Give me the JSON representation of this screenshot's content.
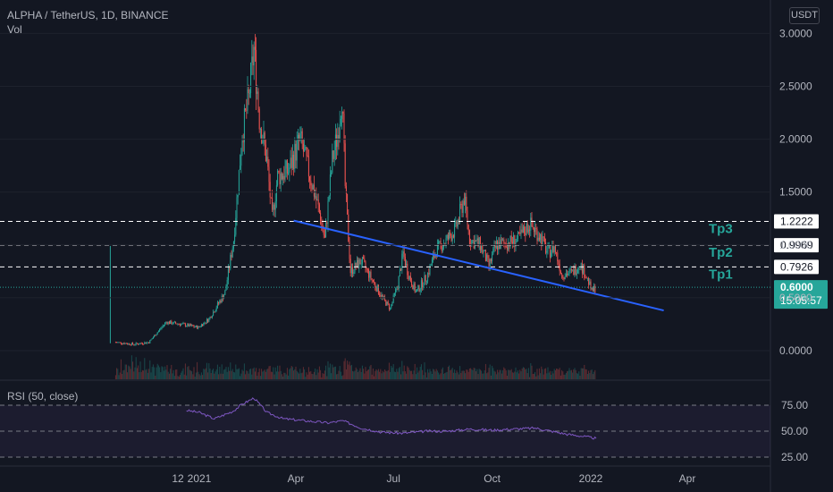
{
  "header": {
    "symbol_line": "ALPHA / TetherUS, 1D, BINANCE",
    "volume_label": "Vol",
    "currency_button": "USDT"
  },
  "rsi": {
    "label": "RSI (50, close)",
    "levels": [
      75,
      50,
      25
    ]
  },
  "colors": {
    "background": "#131722",
    "up": "#26a69a",
    "down": "#ef5350",
    "trendline": "#2962ff",
    "target_label": "#26a69a",
    "rsi_line": "#7e57c2"
  },
  "chart_data": [
    {
      "type": "candlestick",
      "title": "ALPHA / TetherUS, 1D, BINANCE",
      "ylim": [
        -0.25,
        3.1
      ],
      "y_ticks": [
        "3.0000",
        "2.5000",
        "2.0000",
        "1.5000",
        "1.0000",
        "0.5000",
        "0.0000"
      ],
      "x_tick_labels": [
        "12",
        "2021",
        "Apr",
        "Jul",
        "Oct",
        "2022",
        "Apr"
      ],
      "price_path": [
        [
          "2020-10-10",
          0.99
        ],
        [
          "2020-10-15",
          0.08
        ],
        [
          "2020-11-01",
          0.06
        ],
        [
          "2020-11-15",
          0.08
        ],
        [
          "2020-12-01",
          0.27
        ],
        [
          "2020-12-15",
          0.25
        ],
        [
          "2020-12-31",
          0.22
        ],
        [
          "2021-01-10",
          0.3
        ],
        [
          "2021-01-25",
          0.55
        ],
        [
          "2021-02-02",
          1.05
        ],
        [
          "2021-02-10",
          2.05
        ],
        [
          "2021-02-16",
          2.38
        ],
        [
          "2021-02-21",
          2.85
        ],
        [
          "2021-02-26",
          2.2
        ],
        [
          "2021-03-05",
          1.8
        ],
        [
          "2021-03-10",
          1.25
        ],
        [
          "2021-03-15",
          1.65
        ],
        [
          "2021-03-25",
          1.7
        ],
        [
          "2021-04-05",
          2.0
        ],
        [
          "2021-04-15",
          1.62
        ],
        [
          "2021-04-22",
          1.35
        ],
        [
          "2021-04-28",
          1.05
        ],
        [
          "2021-05-05",
          1.8
        ],
        [
          "2021-05-10",
          2.05
        ],
        [
          "2021-05-14",
          2.42
        ],
        [
          "2021-05-17",
          1.55
        ],
        [
          "2021-05-22",
          0.75
        ],
        [
          "2021-06-01",
          0.85
        ],
        [
          "2021-06-15",
          0.6
        ],
        [
          "2021-06-22",
          0.48
        ],
        [
          "2021-06-28",
          0.4
        ],
        [
          "2021-07-05",
          0.62
        ],
        [
          "2021-07-10",
          0.92
        ],
        [
          "2021-07-15",
          0.72
        ],
        [
          "2021-07-22",
          0.55
        ],
        [
          "2021-08-01",
          0.7
        ],
        [
          "2021-08-10",
          0.95
        ],
        [
          "2021-08-20",
          1.05
        ],
        [
          "2021-08-28",
          1.15
        ],
        [
          "2021-09-05",
          1.45
        ],
        [
          "2021-09-10",
          1.05
        ],
        [
          "2021-09-20",
          1.0
        ],
        [
          "2021-09-28",
          0.8
        ],
        [
          "2021-10-05",
          1.0
        ],
        [
          "2021-10-15",
          1.02
        ],
        [
          "2021-10-25",
          1.05
        ],
        [
          "2021-11-05",
          1.2
        ],
        [
          "2021-11-15",
          1.08
        ],
        [
          "2021-11-22",
          0.92
        ],
        [
          "2021-11-28",
          0.98
        ],
        [
          "2021-12-05",
          0.72
        ],
        [
          "2021-12-15",
          0.74
        ],
        [
          "2021-12-22",
          0.82
        ],
        [
          "2021-12-28",
          0.7
        ],
        [
          "2022-01-02",
          0.56
        ],
        [
          "2022-01-06",
          0.6
        ]
      ],
      "horizontal_levels": [
        {
          "name": "Tp3",
          "value": 1.2222,
          "label": "1.2222"
        },
        {
          "name": "Tp2",
          "value": 0.9969,
          "label": "0.9969"
        },
        {
          "name": "Tp1",
          "value": 0.7926,
          "label": "0.7926"
        }
      ],
      "trendline": {
        "start": [
          "2021-03-30",
          1.23
        ],
        "end": [
          "2022-03-10",
          0.38
        ]
      },
      "last_price": {
        "value": 0.6,
        "label": "0.6000",
        "countdown": "15:05:57"
      }
    },
    {
      "type": "line",
      "title": "RSI (50, close)",
      "ylim": [
        22,
        88
      ],
      "y_ticks": [
        "75.00",
        "50.00",
        "25.00"
      ],
      "x": [
        "2020-12-20",
        "2021-01-01",
        "2021-01-15",
        "2021-02-01",
        "2021-02-10",
        "2021-02-21",
        "2021-03-05",
        "2021-03-20",
        "2021-04-10",
        "2021-05-01",
        "2021-05-15",
        "2021-06-01",
        "2021-06-20",
        "2021-07-10",
        "2021-08-01",
        "2021-08-20",
        "2021-09-10",
        "2021-10-01",
        "2021-10-20",
        "2021-11-10",
        "2021-11-25",
        "2021-12-10",
        "2021-12-25",
        "2022-01-06"
      ],
      "values": [
        70,
        68,
        62,
        69,
        76,
        82,
        68,
        62,
        60,
        58,
        60,
        53,
        49,
        48,
        50,
        50,
        52,
        51,
        52,
        53,
        50,
        47,
        45,
        43
      ]
    }
  ]
}
